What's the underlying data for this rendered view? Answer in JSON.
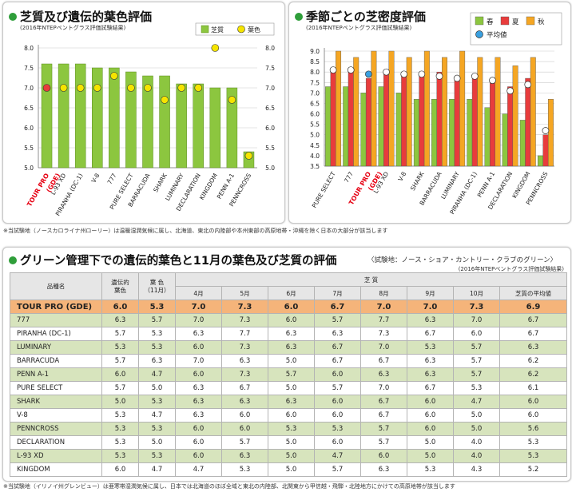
{
  "panel1": {
    "title": "芝質及び遺伝的葉色評価",
    "subtitle": "(2016年NTEPベントグラス評価試験結果)"
  },
  "panel2": {
    "title": "季節ごとの芝密度評価",
    "subtitle": "(2016年NTEPベントグラス評価試験結果)"
  },
  "panel3": {
    "title": "グリーン管理下での遺伝的葉色と11月の葉色及び芝質の評価",
    "location": "〈試験地：ノース・ショア・カントリー・クラブのグリーン〉",
    "subtitle": "(2016年NTEPベントグラス評価試験結果)"
  },
  "note1": "※当試験地（ノースカロライナ州ローリー）は温暖湿潤気候に属し、北海道、東北の内陸部や本州東部の高原地帯・沖縄を除く日本の大部分が該当します",
  "note2": "※当試験地（イリノイ州グレンビュー）は亜寒帯湿潤気候に属し、日本では北海道のほぼ全域と東北の内陸部、北関東から甲信越・飛騨・北陸地方にかけての高原地帯が該当します",
  "colors": {
    "green": "#8cc63f",
    "yellow": "#f5e400",
    "red": "#e83c3c",
    "orange": "#f5a623",
    "blue": "#3aa0e0",
    "highlight_label": "#e60012",
    "highlight_row": "#f5b47a",
    "zebra": "#d7e4bd"
  },
  "chart_data": [
    {
      "type": "bar",
      "categories": [
        "TOUR PRO\n(GDE)",
        "L-93 XD",
        "PIRANHA (DC-1)",
        "V-8",
        "777",
        "PURE SELECT",
        "BARRACUDA",
        "SHARK",
        "LUMINARY",
        "DECLARATION",
        "KINGDOM",
        "PENN A-1",
        "PENNCROSS"
      ],
      "highlight_category": 0,
      "series": [
        {
          "name": "芝質",
          "type": "bar",
          "values": [
            7.6,
            7.6,
            7.6,
            7.5,
            7.5,
            7.4,
            7.3,
            7.3,
            7.1,
            7.1,
            7.0,
            7.0,
            5.4
          ]
        },
        {
          "name": "葉色",
          "type": "marker",
          "values": [
            7.0,
            7.0,
            7.0,
            7.0,
            7.3,
            7.0,
            7.0,
            6.7,
            7.0,
            7.0,
            8.0,
            6.7,
            5.3
          ]
        }
      ],
      "ylim": [
        5.0,
        8.0
      ],
      "yticks": [
        "5.0",
        "5.5",
        "6.0",
        "6.5",
        "7.0",
        "7.5",
        "8.0"
      ],
      "legend_position": "top-right",
      "grid": true
    },
    {
      "type": "bar",
      "categories": [
        "PURE SELECT",
        "777",
        "TOUR PRO\n(GDE)",
        "L-93 XD",
        "V-8",
        "SHARK",
        "BARRACUDA",
        "LUMINARY",
        "PIRANHA (DC-1)",
        "PENN A-1",
        "DECLARATION",
        "KINGDOM",
        "PENNCROSS"
      ],
      "highlight_category": 2,
      "series": [
        {
          "name": "春",
          "values": [
            7.3,
            7.3,
            7.0,
            7.3,
            7.0,
            6.7,
            6.7,
            6.7,
            6.7,
            6.3,
            6.0,
            5.7,
            4.0
          ]
        },
        {
          "name": "夏",
          "values": [
            8.0,
            8.0,
            7.7,
            8.0,
            8.0,
            8.0,
            8.0,
            7.7,
            7.7,
            7.7,
            7.3,
            7.7,
            5.0
          ]
        },
        {
          "name": "秋",
          "values": [
            9.0,
            8.7,
            9.0,
            9.0,
            8.7,
            9.0,
            8.7,
            9.0,
            8.7,
            8.7,
            8.3,
            8.7,
            6.7
          ]
        },
        {
          "name": "平均値",
          "type": "marker",
          "values": [
            8.1,
            8.1,
            7.9,
            8.0,
            7.9,
            7.9,
            7.8,
            7.7,
            7.8,
            7.6,
            7.1,
            7.4,
            5.2
          ]
        }
      ],
      "ylim": [
        3.5,
        9.0
      ],
      "yticks": [
        "3.5",
        "4.0",
        "4.5",
        "5.0",
        "5.5",
        "6.0",
        "6.5",
        "7.0",
        "7.5",
        "8.0",
        "8.5",
        "9.0"
      ],
      "legend_position": "top-right",
      "grid": true
    },
    {
      "type": "table",
      "header_top": {
        "name": "品種名",
        "genetic": "遺伝的\n葉色",
        "nov_color": "葉 色\n（11月）",
        "quality": "芝 質"
      },
      "header_months": [
        "4月",
        "5月",
        "6月",
        "7月",
        "8月",
        "9月",
        "10月",
        "芝質の平均値"
      ],
      "highlight_row": 0,
      "rows": [
        [
          "TOUR PRO (GDE)",
          "6.0",
          "5.3",
          "7.0",
          "7.3",
          "6.0",
          "6.7",
          "7.0",
          "7.0",
          "7.3",
          "6.9"
        ],
        [
          "777",
          "6.3",
          "5.7",
          "7.0",
          "7.3",
          "6.0",
          "5.7",
          "7.7",
          "6.3",
          "7.0",
          "6.7"
        ],
        [
          "PIRANHA (DC-1)",
          "5.7",
          "5.3",
          "6.3",
          "7.7",
          "6.3",
          "6.3",
          "7.3",
          "6.7",
          "6.0",
          "6.7"
        ],
        [
          "LUMINARY",
          "5.3",
          "5.3",
          "6.0",
          "7.3",
          "6.3",
          "6.7",
          "7.0",
          "5.3",
          "5.7",
          "6.3"
        ],
        [
          "BARRACUDA",
          "5.7",
          "6.3",
          "7.0",
          "6.3",
          "5.0",
          "6.7",
          "6.7",
          "6.3",
          "5.7",
          "6.2"
        ],
        [
          "PENN A-1",
          "6.0",
          "4.7",
          "6.0",
          "7.3",
          "5.7",
          "6.0",
          "6.3",
          "6.3",
          "5.7",
          "6.2"
        ],
        [
          "PURE SELECT",
          "5.7",
          "5.0",
          "6.3",
          "6.7",
          "5.0",
          "5.7",
          "7.0",
          "6.7",
          "5.3",
          "6.1"
        ],
        [
          "SHARK",
          "5.0",
          "5.3",
          "6.3",
          "6.3",
          "6.3",
          "6.0",
          "6.7",
          "6.0",
          "4.7",
          "6.0"
        ],
        [
          "V-8",
          "5.3",
          "4.7",
          "6.3",
          "6.0",
          "6.0",
          "6.0",
          "6.7",
          "6.0",
          "5.0",
          "6.0"
        ],
        [
          "PENNCROSS",
          "5.3",
          "5.3",
          "6.0",
          "6.0",
          "5.3",
          "5.3",
          "5.7",
          "6.0",
          "5.0",
          "5.6"
        ],
        [
          "DECLARATION",
          "5.3",
          "5.0",
          "6.0",
          "5.7",
          "5.0",
          "6.0",
          "5.7",
          "5.0",
          "4.0",
          "5.3"
        ],
        [
          "L-93 XD",
          "5.3",
          "5.3",
          "6.0",
          "6.3",
          "5.0",
          "4.7",
          "6.0",
          "5.0",
          "4.0",
          "5.3"
        ],
        [
          "KINGDOM",
          "6.0",
          "4.7",
          "4.7",
          "5.3",
          "5.0",
          "5.7",
          "6.3",
          "5.3",
          "4.3",
          "5.2"
        ]
      ]
    }
  ]
}
